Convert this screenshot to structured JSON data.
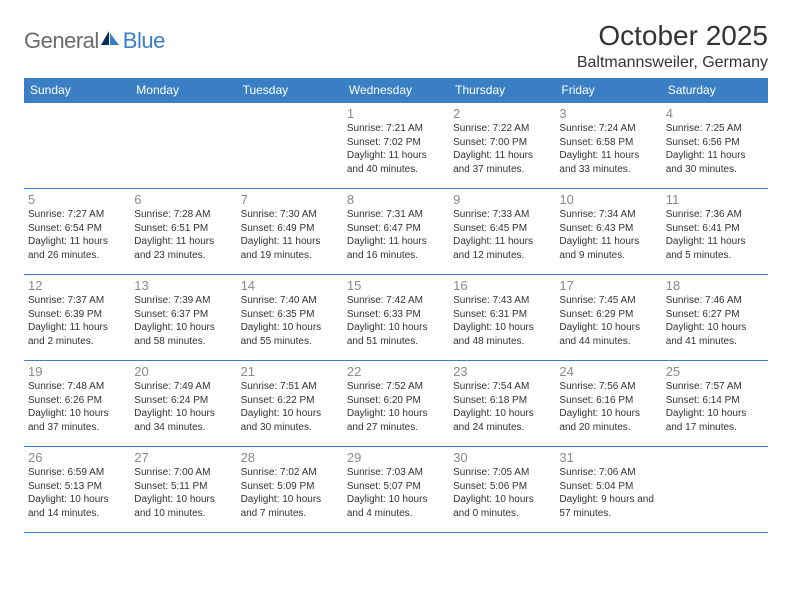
{
  "brand": {
    "part1": "General",
    "part2": "Blue"
  },
  "title": "October 2025",
  "location": "Baltmannsweiler, Germany",
  "colors": {
    "header_bg": "#3a7fc4",
    "header_text": "#ffffff",
    "border": "#3a7fc4",
    "daynum": "#8a8a8a",
    "body_text": "#333333",
    "logo_gray": "#6b6b6b",
    "logo_blue": "#3a7fc4",
    "page_bg": "#ffffff"
  },
  "day_headers": [
    "Sunday",
    "Monday",
    "Tuesday",
    "Wednesday",
    "Thursday",
    "Friday",
    "Saturday"
  ],
  "weeks": [
    [
      {
        "n": "",
        "sr": "",
        "ss": "",
        "dl": ""
      },
      {
        "n": "",
        "sr": "",
        "ss": "",
        "dl": ""
      },
      {
        "n": "",
        "sr": "",
        "ss": "",
        "dl": ""
      },
      {
        "n": "1",
        "sr": "7:21 AM",
        "ss": "7:02 PM",
        "dl": "11 hours and 40 minutes."
      },
      {
        "n": "2",
        "sr": "7:22 AM",
        "ss": "7:00 PM",
        "dl": "11 hours and 37 minutes."
      },
      {
        "n": "3",
        "sr": "7:24 AM",
        "ss": "6:58 PM",
        "dl": "11 hours and 33 minutes."
      },
      {
        "n": "4",
        "sr": "7:25 AM",
        "ss": "6:56 PM",
        "dl": "11 hours and 30 minutes."
      }
    ],
    [
      {
        "n": "5",
        "sr": "7:27 AM",
        "ss": "6:54 PM",
        "dl": "11 hours and 26 minutes."
      },
      {
        "n": "6",
        "sr": "7:28 AM",
        "ss": "6:51 PM",
        "dl": "11 hours and 23 minutes."
      },
      {
        "n": "7",
        "sr": "7:30 AM",
        "ss": "6:49 PM",
        "dl": "11 hours and 19 minutes."
      },
      {
        "n": "8",
        "sr": "7:31 AM",
        "ss": "6:47 PM",
        "dl": "11 hours and 16 minutes."
      },
      {
        "n": "9",
        "sr": "7:33 AM",
        "ss": "6:45 PM",
        "dl": "11 hours and 12 minutes."
      },
      {
        "n": "10",
        "sr": "7:34 AM",
        "ss": "6:43 PM",
        "dl": "11 hours and 9 minutes."
      },
      {
        "n": "11",
        "sr": "7:36 AM",
        "ss": "6:41 PM",
        "dl": "11 hours and 5 minutes."
      }
    ],
    [
      {
        "n": "12",
        "sr": "7:37 AM",
        "ss": "6:39 PM",
        "dl": "11 hours and 2 minutes."
      },
      {
        "n": "13",
        "sr": "7:39 AM",
        "ss": "6:37 PM",
        "dl": "10 hours and 58 minutes."
      },
      {
        "n": "14",
        "sr": "7:40 AM",
        "ss": "6:35 PM",
        "dl": "10 hours and 55 minutes."
      },
      {
        "n": "15",
        "sr": "7:42 AM",
        "ss": "6:33 PM",
        "dl": "10 hours and 51 minutes."
      },
      {
        "n": "16",
        "sr": "7:43 AM",
        "ss": "6:31 PM",
        "dl": "10 hours and 48 minutes."
      },
      {
        "n": "17",
        "sr": "7:45 AM",
        "ss": "6:29 PM",
        "dl": "10 hours and 44 minutes."
      },
      {
        "n": "18",
        "sr": "7:46 AM",
        "ss": "6:27 PM",
        "dl": "10 hours and 41 minutes."
      }
    ],
    [
      {
        "n": "19",
        "sr": "7:48 AM",
        "ss": "6:26 PM",
        "dl": "10 hours and 37 minutes."
      },
      {
        "n": "20",
        "sr": "7:49 AM",
        "ss": "6:24 PM",
        "dl": "10 hours and 34 minutes."
      },
      {
        "n": "21",
        "sr": "7:51 AM",
        "ss": "6:22 PM",
        "dl": "10 hours and 30 minutes."
      },
      {
        "n": "22",
        "sr": "7:52 AM",
        "ss": "6:20 PM",
        "dl": "10 hours and 27 minutes."
      },
      {
        "n": "23",
        "sr": "7:54 AM",
        "ss": "6:18 PM",
        "dl": "10 hours and 24 minutes."
      },
      {
        "n": "24",
        "sr": "7:56 AM",
        "ss": "6:16 PM",
        "dl": "10 hours and 20 minutes."
      },
      {
        "n": "25",
        "sr": "7:57 AM",
        "ss": "6:14 PM",
        "dl": "10 hours and 17 minutes."
      }
    ],
    [
      {
        "n": "26",
        "sr": "6:59 AM",
        "ss": "5:13 PM",
        "dl": "10 hours and 14 minutes."
      },
      {
        "n": "27",
        "sr": "7:00 AM",
        "ss": "5:11 PM",
        "dl": "10 hours and 10 minutes."
      },
      {
        "n": "28",
        "sr": "7:02 AM",
        "ss": "5:09 PM",
        "dl": "10 hours and 7 minutes."
      },
      {
        "n": "29",
        "sr": "7:03 AM",
        "ss": "5:07 PM",
        "dl": "10 hours and 4 minutes."
      },
      {
        "n": "30",
        "sr": "7:05 AM",
        "ss": "5:06 PM",
        "dl": "10 hours and 0 minutes."
      },
      {
        "n": "31",
        "sr": "7:06 AM",
        "ss": "5:04 PM",
        "dl": "9 hours and 57 minutes."
      },
      {
        "n": "",
        "sr": "",
        "ss": "",
        "dl": ""
      }
    ]
  ],
  "labels": {
    "sunrise": "Sunrise:",
    "sunset": "Sunset:",
    "daylight": "Daylight:"
  }
}
